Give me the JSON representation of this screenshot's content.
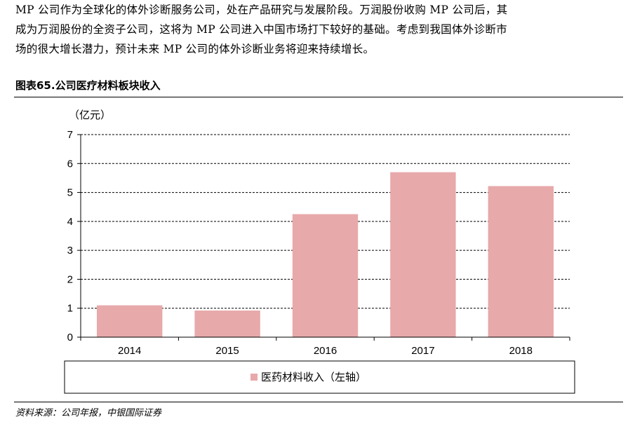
{
  "paragraph": {
    "lines": [
      "MP 公司作为全球化的体外诊断服务公司，处在产品研究与发展阶段。万润股份收购 MP 公司后，其",
      "成为万润股份的全资子公司，这将为 MP 公司进入中国市场打下较好的基础。考虑到我国体外诊断市",
      "场的很大增长潜力，预计未来 MP 公司的体外诊断业务将迎来持续增长。"
    ]
  },
  "figure_title": "图表65.公司医疗材料板块收入",
  "source": "资料来源：公司年报，中银国际证券",
  "chart_data": {
    "type": "bar",
    "categories": [
      "2014",
      "2015",
      "2016",
      "2017",
      "2018"
    ],
    "series": [
      {
        "name": "医药材料收入（左轴）",
        "values": [
          1.1,
          0.92,
          4.25,
          5.7,
          5.22
        ],
        "color": "#e8a9aa"
      }
    ],
    "ylabel": "（亿元）",
    "ylim": [
      0,
      7
    ],
    "yticks": [
      "0",
      "1",
      "2",
      "3",
      "4",
      "5",
      "6",
      "7"
    ],
    "grid": true,
    "legend_position": "bottom"
  }
}
